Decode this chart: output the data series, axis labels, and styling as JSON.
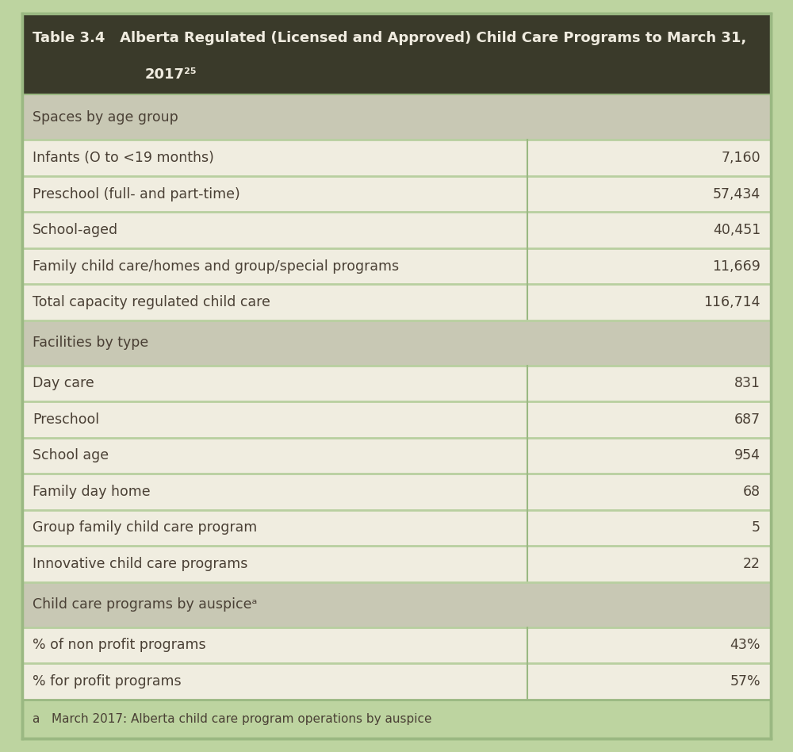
{
  "title_line1": "Table 3.4   Alberta Regulated (Licensed and Approved) Child Care Programs to March 31,",
  "title_line2": "2017²⁵",
  "title_bg": "#3a3a2a",
  "title_color": "#f0ece0",
  "outer_bg": "#bdd4a0",
  "inner_bg": "#f0ede0",
  "section_bg": "#c8c8b4",
  "section_text_color": "#4a4035",
  "row_text_color": "#4a4035",
  "footnote_color": "#4a4035",
  "col_divider": "#9ab882",
  "row_divider": "#b8cfa0",
  "sections": [
    {
      "type": "section_header",
      "label": "Spaces by age group",
      "value": ""
    },
    {
      "type": "data_row",
      "label": "Infants (O to <19 months)",
      "value": "7,160"
    },
    {
      "type": "data_row",
      "label": "Preschool (full- and part-time)",
      "value": "57,434"
    },
    {
      "type": "data_row",
      "label": "School-aged",
      "value": "40,451"
    },
    {
      "type": "data_row",
      "label": "Family child care/homes and group/special programs",
      "value": "11,669"
    },
    {
      "type": "data_row",
      "label": "Total capacity regulated child care",
      "value": "116,714"
    },
    {
      "type": "section_header",
      "label": "Facilities by type",
      "value": ""
    },
    {
      "type": "data_row",
      "label": "Day care",
      "value": "831"
    },
    {
      "type": "data_row",
      "label": "Preschool",
      "value": "687"
    },
    {
      "type": "data_row",
      "label": "School age",
      "value": "954"
    },
    {
      "type": "data_row",
      "label": "Family day home",
      "value": "68"
    },
    {
      "type": "data_row",
      "label": "Group family child care program",
      "value": "5"
    },
    {
      "type": "data_row",
      "label": "Innovative child care programs",
      "value": "22"
    },
    {
      "type": "section_header",
      "label": "Child care programs by auspiceᵃ",
      "value": ""
    },
    {
      "type": "data_row",
      "label": "% of non profit programs",
      "value": "43%"
    },
    {
      "type": "data_row",
      "label": "% for profit programs",
      "value": "57%"
    }
  ],
  "footnote": "a   March 2017: Alberta child care program operations by auspice",
  "col_split": 0.675,
  "title_fontsize": 13.0,
  "section_fontsize": 12.5,
  "data_fontsize": 12.5,
  "footnote_fontsize": 11.0
}
